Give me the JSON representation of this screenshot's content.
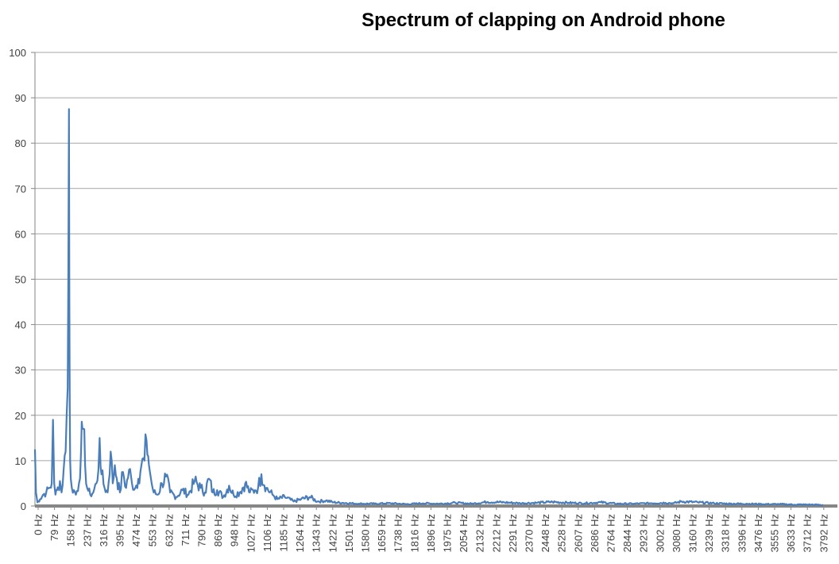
{
  "chart_data": {
    "type": "line",
    "title": "Spectrum of clapping on Android phone",
    "xlabel": "",
    "ylabel": "",
    "ylim": [
      0,
      100
    ],
    "y_ticks": [
      "0",
      "10",
      "20",
      "30",
      "40",
      "50",
      "60",
      "70",
      "80",
      "90",
      "100"
    ],
    "x_tick_labels": [
      "0 Hz",
      "79 Hz",
      "158 Hz",
      "237 Hz",
      "316 Hz",
      "395 Hz",
      "474 Hz",
      "553 Hz",
      "632 Hz",
      "711 Hz",
      "790 Hz",
      "869 Hz",
      "948 Hz",
      "1027 Hz",
      "1106 Hz",
      "1185 Hz",
      "1264 Hz",
      "1343 Hz",
      "1422 Hz",
      "1501 Hz",
      "1580 Hz",
      "1659 Hz",
      "1738 Hz",
      "1816 Hz",
      "1896 Hz",
      "1975 Hz",
      "2054 Hz",
      "2132 Hz",
      "2212 Hz",
      "2291 Hz",
      "2370 Hz",
      "2448 Hz",
      "2528 Hz",
      "2607 Hz",
      "2686 Hz",
      "2764 Hz",
      "2844 Hz",
      "2923 Hz",
      "3002 Hz",
      "3080 Hz",
      "3160 Hz",
      "3239 Hz",
      "3318 Hz",
      "3396 Hz",
      "3476 Hz",
      "3555 Hz",
      "3633 Hz",
      "3712 Hz",
      "3792 Hz"
    ],
    "grid": true,
    "legend": "none",
    "series_color": "#4a7ebb",
    "gridline_color": "#a6a6a6",
    "series": [
      {
        "x": [
          0,
          5,
          12,
          25,
          40,
          55,
          70,
          82,
          88,
          94,
          100,
          108,
          115,
          122,
          130,
          140,
          150,
          155,
          160,
          163,
          166,
          168,
          170,
          172,
          175,
          180,
          190,
          200,
          215,
          225,
          232,
          237,
          245,
          255,
          270,
          285,
          300,
          310,
          316,
          325,
          340,
          355,
          370,
          380,
          390,
          400,
          415,
          430,
          445,
          460,
          474,
          490,
          505,
          520,
          535,
          545,
          553,
          560,
          570,
          580,
          600,
          620,
          640,
          660,
          690,
          720,
          750,
          780,
          810,
          830,
          850,
          869,
          890,
          920,
          948,
          970,
          1000,
          1027,
          1050,
          1075,
          1090,
          1106,
          1130,
          1160,
          1185,
          1220,
          1264,
          1300,
          1343,
          1380,
          1422,
          1460,
          1501,
          1580,
          1659,
          1738,
          1816,
          1896,
          1975,
          2054,
          2132,
          2212,
          2291,
          2370,
          2448,
          2528,
          2607,
          2686,
          2764,
          2844,
          2923,
          3002,
          3080,
          3120,
          3160,
          3239,
          3318,
          3396,
          3476,
          3555,
          3633,
          3712,
          3792,
          3850
        ],
        "y": [
          12.5,
          3.0,
          0.8,
          1.5,
          2.5,
          3.0,
          4.0,
          5.0,
          19.0,
          5.0,
          2.5,
          3.5,
          4.0,
          5.5,
          3.0,
          8.0,
          12.0,
          20.0,
          26.0,
          50.0,
          87.5,
          45.0,
          22.0,
          10.0,
          6.0,
          4.0,
          3.5,
          2.5,
          5.0,
          12.0,
          17.0,
          17.0,
          9.0,
          4.0,
          2.5,
          3.0,
          5.0,
          8.0,
          15.0,
          7.0,
          4.0,
          3.0,
          12.0,
          5.0,
          9.0,
          6.0,
          3.0,
          7.5,
          4.0,
          8.0,
          5.0,
          4.0,
          6.0,
          9.0,
          10.0,
          14.5,
          11.0,
          8.0,
          5.0,
          3.0,
          2.5,
          5.0,
          6.5,
          3.0,
          2.0,
          3.5,
          2.5,
          5.5,
          4.0,
          3.0,
          6.0,
          3.0,
          3.5,
          2.0,
          4.5,
          2.5,
          3.0,
          5.0,
          3.0,
          3.5,
          4.0,
          7.0,
          4.0,
          2.5,
          1.5,
          2.0,
          1.0,
          1.5,
          2.0,
          1.0,
          1.2,
          0.8,
          0.7,
          0.5,
          0.5,
          0.6,
          0.4,
          0.6,
          0.5,
          0.7,
          0.5,
          0.9,
          0.8,
          0.6,
          0.7,
          0.9,
          0.7,
          0.6,
          0.8,
          0.5,
          0.5,
          0.6,
          0.7,
          0.6,
          1.0,
          0.8,
          0.6,
          0.5,
          0.5,
          0.4,
          0.4,
          0.3,
          0.3,
          0.2
        ]
      }
    ]
  }
}
